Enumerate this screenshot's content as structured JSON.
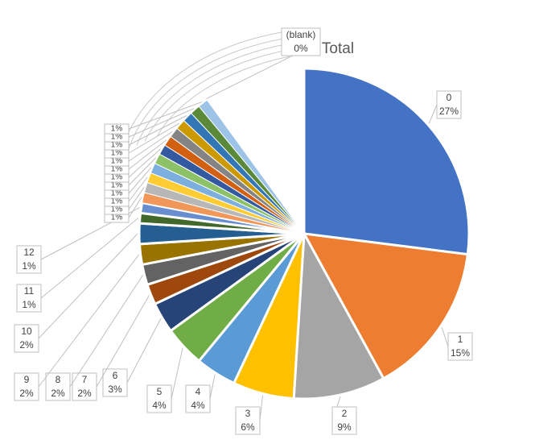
{
  "chart_data": {
    "type": "pie",
    "title": "Total",
    "categories": [
      "0",
      "1",
      "2",
      "3",
      "4",
      "5",
      "6",
      "7",
      "8",
      "9",
      "10",
      "11",
      "12",
      null,
      null,
      null,
      null,
      null,
      null,
      null,
      null,
      null,
      null,
      null,
      null,
      "(blank)"
    ],
    "values": [
      27,
      15,
      9,
      6,
      4,
      4,
      3,
      2,
      2,
      2,
      2,
      1,
      1,
      1,
      1,
      1,
      1,
      1,
      1,
      1,
      1,
      1,
      1,
      1,
      1,
      0
    ],
    "value_labels": [
      "27%",
      "15%",
      "9%",
      "6%",
      "4%",
      "4%",
      "3%",
      "2%",
      "2%",
      "2%",
      "2%",
      "1%",
      "1%",
      "1%",
      "1%",
      "1%",
      "1%",
      "1%",
      "1%",
      "1%",
      "1%",
      "1%",
      "1%",
      "1%",
      "1%",
      "0%"
    ],
    "colors": [
      "#4472c4",
      "#ed7d31",
      "#a5a5a5",
      "#ffc000",
      "#5b9bd5",
      "#70ad47",
      "#264478",
      "#9e480e",
      "#636363",
      "#997300",
      "#255e91",
      "#43682b",
      "#698ed0",
      "#f1975a",
      "#b7b7b7",
      "#ffcd33",
      "#7cafdd",
      "#8cc168",
      "#335aa1",
      "#d26012",
      "#848484",
      "#cc9a00",
      "#3276b5",
      "#5a8a39",
      "#9dc3e6",
      "#ffffff"
    ]
  }
}
